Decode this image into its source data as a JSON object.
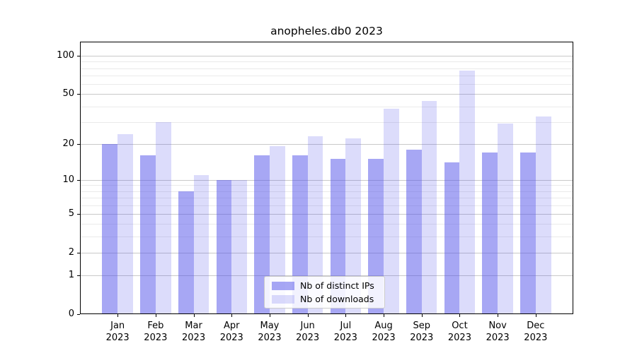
{
  "page": {
    "title": "anopheles.db0 2023"
  },
  "chart_data": {
    "type": "bar",
    "title": "anopheles.db0 2023",
    "yscale": "log10(value+1)",
    "grid": {
      "major_color": "#c9c9c9",
      "minor_color": "#eaeaea"
    },
    "categories": [
      "Jan",
      "Feb",
      "Mar",
      "Apr",
      "May",
      "Jun",
      "Jul",
      "Aug",
      "Sep",
      "Oct",
      "Nov",
      "Dec"
    ],
    "category_year": "2023",
    "series": [
      {
        "name": "Nb of distinct IPs",
        "color": "rgba(79,79,233,0.5)",
        "values": [
          20,
          16,
          8,
          10,
          16,
          16,
          15,
          15,
          18,
          14,
          17,
          17
        ]
      },
      {
        "name": "Nb of downloads",
        "color": "rgba(79,79,233,0.2)",
        "values": [
          24,
          30,
          11,
          10,
          19,
          23,
          22,
          38,
          44,
          77,
          29,
          33
        ]
      }
    ],
    "ylim": [
      0,
      129
    ],
    "yticks": [
      0,
      1,
      2,
      5,
      10,
      20,
      50,
      100
    ],
    "ymajor_grid": [
      1,
      2,
      5,
      10,
      20,
      50,
      100
    ],
    "yminor_grid": [
      3,
      4,
      6,
      7,
      8,
      9,
      30,
      40,
      60,
      70,
      80,
      90
    ],
    "xlabel": "",
    "ylabel": "",
    "legend_position": "bottom-center"
  }
}
